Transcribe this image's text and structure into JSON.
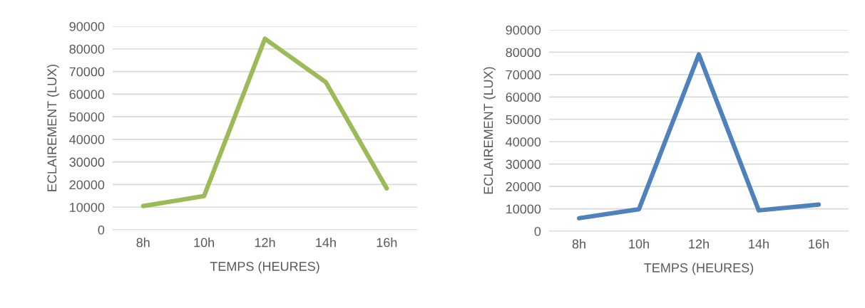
{
  "chart_data": [
    {
      "type": "line",
      "xlabel": "TEMPS (HEURES)",
      "ylabel": "ECLAIREMENT (LUX)",
      "categories": [
        "8h",
        "10h",
        "12h",
        "14h",
        "16h"
      ],
      "series": [
        {
          "color": "#9bbb59",
          "values": [
            10500,
            14900,
            84500,
            65300,
            18300
          ]
        }
      ],
      "ylim": [
        0,
        90000
      ],
      "yticks": [
        0,
        10000,
        20000,
        30000,
        40000,
        50000,
        60000,
        70000,
        80000,
        90000
      ],
      "grid": "y",
      "marker": "none",
      "line_style": "solid",
      "legend": false
    },
    {
      "type": "line",
      "xlabel": "TEMPS (HEURES)",
      "ylabel": "ECLAIREMENT (LUX)",
      "categories": [
        "8h",
        "10h",
        "12h",
        "14h",
        "16h"
      ],
      "series": [
        {
          "color": "#4f81bd",
          "values": [
            5800,
            9800,
            79000,
            9300,
            11900
          ]
        }
      ],
      "ylim": [
        0,
        90000
      ],
      "yticks": [
        0,
        10000,
        20000,
        30000,
        40000,
        50000,
        60000,
        70000,
        80000,
        90000
      ],
      "grid": "y",
      "marker": "none",
      "line_style": "solid",
      "legend": false
    }
  ]
}
